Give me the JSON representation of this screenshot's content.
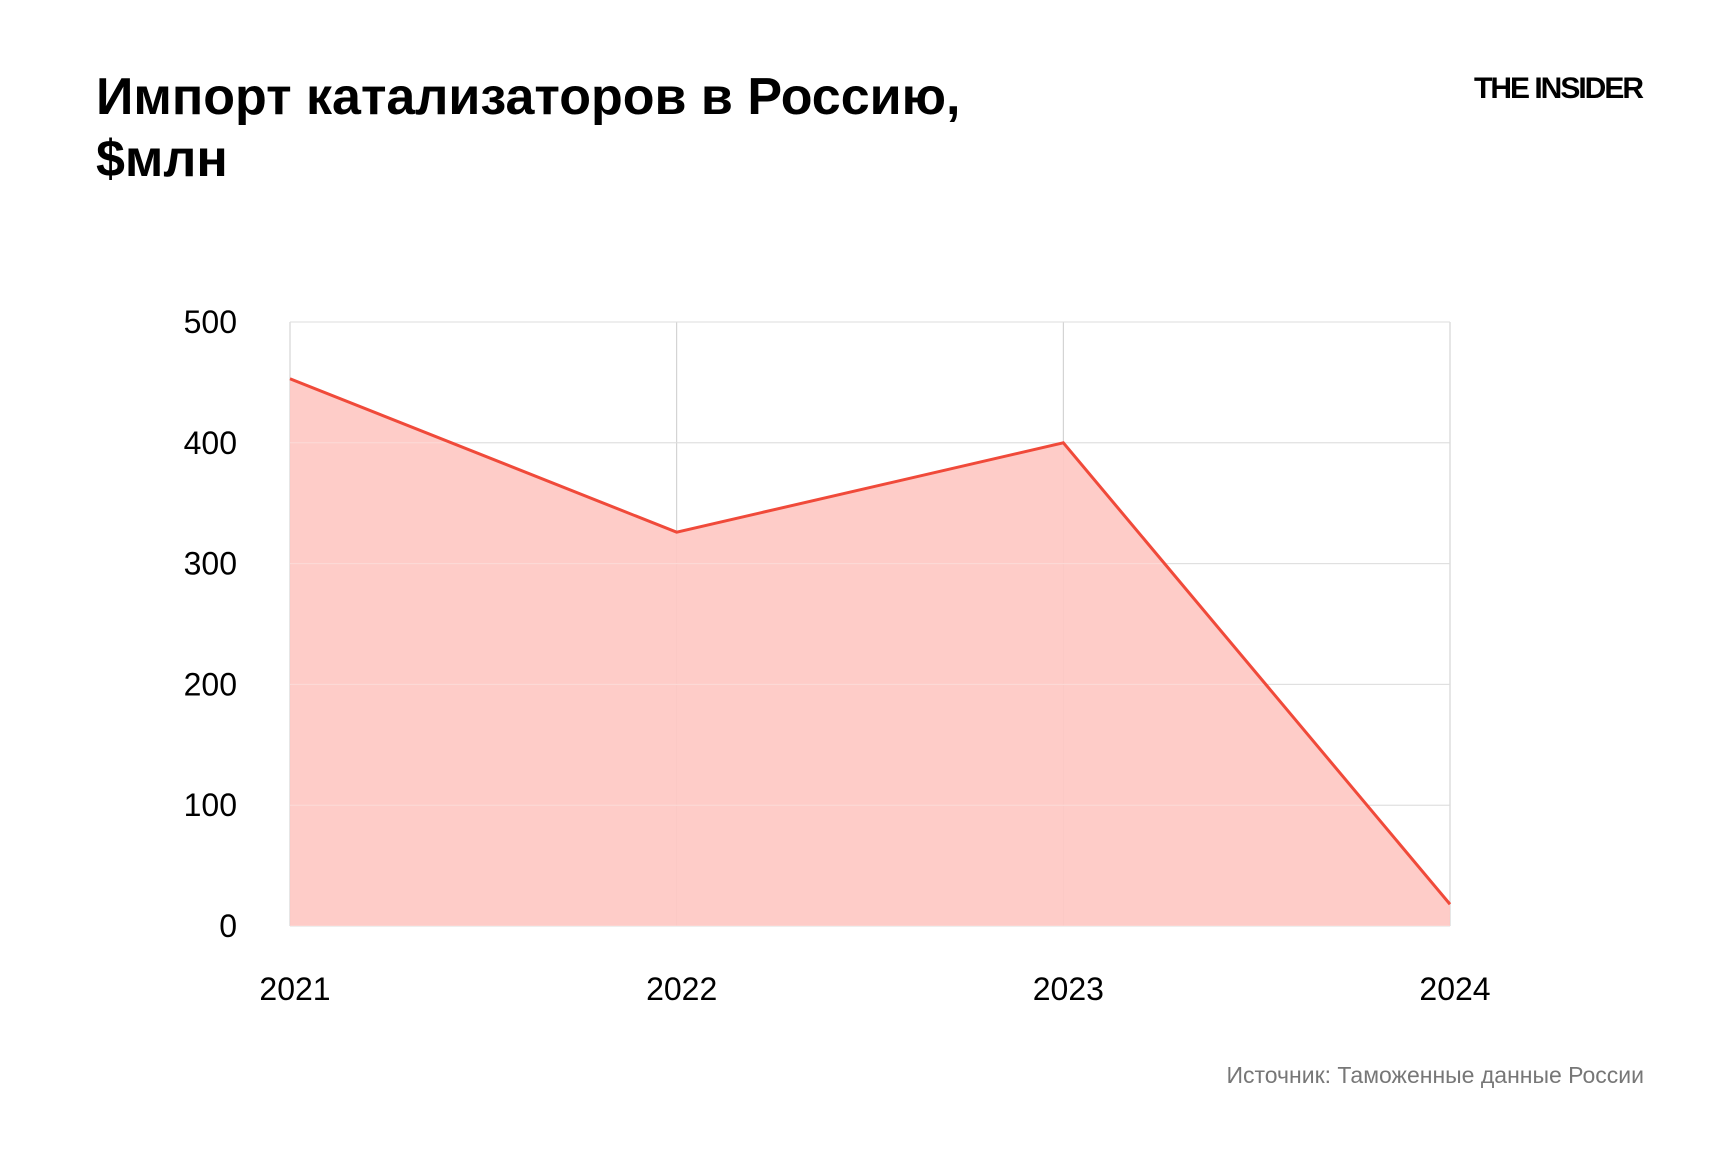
{
  "title": "Импорт катализаторов в Россию, $млн",
  "logo": "THE INSIDER",
  "source": "Источник: Таможенные данные России",
  "chart_data": {
    "type": "area",
    "title": "Импорт катализаторов в Россию, $млн",
    "categories": [
      "2021",
      "2022",
      "2023",
      "2024"
    ],
    "series": [
      {
        "values": [
          453,
          326,
          400,
          18
        ]
      }
    ],
    "ylim": [
      0,
      500
    ],
    "yticks": [
      0,
      100,
      200,
      300,
      400,
      500
    ],
    "xlabel": "",
    "ylabel": "",
    "grid": true,
    "colors": {
      "line": "#f04a3a",
      "fill": "#fec8c3",
      "grid": "#cccccc"
    }
  }
}
